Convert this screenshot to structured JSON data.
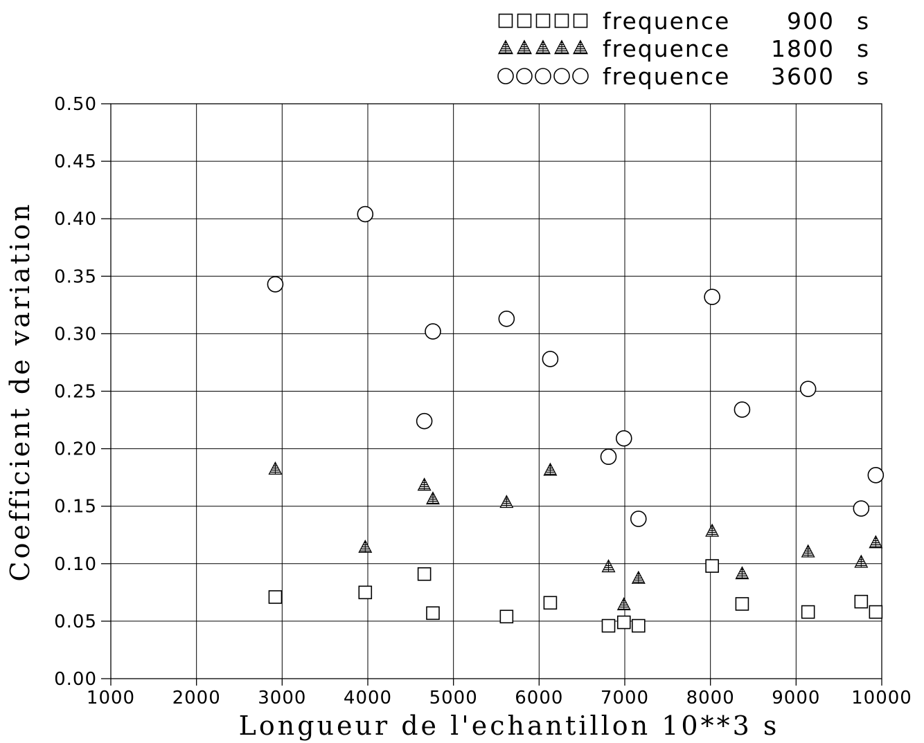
{
  "chart_data": {
    "type": "scatter",
    "title": "",
    "xlabel": "Longueur de l'echantillon 10**3 s",
    "ylabel": "Coefficient de variation",
    "xlim": [
      1000,
      10000
    ],
    "ylim": [
      0.0,
      0.5
    ],
    "xticks": [
      "1000",
      "2000",
      "3000",
      "4000",
      "5000",
      "6000",
      "7000",
      "8000",
      "9000",
      "10000"
    ],
    "yticks": [
      "0.00",
      "0.05",
      "0.10",
      "0.15",
      "0.20",
      "0.25",
      "0.30",
      "0.35",
      "0.40",
      "0.45",
      "0.50"
    ],
    "grid": true,
    "legend_position": "top-right",
    "series": [
      {
        "label": "frequence",
        "period": "900",
        "unit": "s",
        "marker": "square",
        "x": [
          2920,
          3970,
          4660,
          4760,
          5620,
          6130,
          6810,
          6990,
          7160,
          8020,
          8370,
          9140,
          9760,
          9930
        ],
        "y": [
          0.071,
          0.075,
          0.091,
          0.057,
          0.054,
          0.066,
          0.046,
          0.049,
          0.046,
          0.098,
          0.065,
          0.058,
          0.067,
          0.058
        ]
      },
      {
        "label": "frequence",
        "period": "1800",
        "unit": "s",
        "marker": "triangle-hatched",
        "x": [
          2920,
          3970,
          4660,
          4760,
          5620,
          6130,
          6810,
          6990,
          7160,
          8020,
          8370,
          9140,
          9760,
          9930
        ],
        "y": [
          0.182,
          0.114,
          0.168,
          0.156,
          0.153,
          0.181,
          0.097,
          0.064,
          0.087,
          0.128,
          0.091,
          0.11,
          0.101,
          0.118
        ]
      },
      {
        "label": "frequence",
        "period": "3600",
        "unit": "s",
        "marker": "circle",
        "x": [
          2920,
          3970,
          4660,
          4760,
          5620,
          6130,
          6810,
          6990,
          7160,
          8020,
          8370,
          9140,
          9760,
          9930
        ],
        "y": [
          0.343,
          0.404,
          0.224,
          0.302,
          0.313,
          0.278,
          0.193,
          0.209,
          0.139,
          0.332,
          0.234,
          0.252,
          0.148,
          0.177
        ]
      }
    ]
  }
}
